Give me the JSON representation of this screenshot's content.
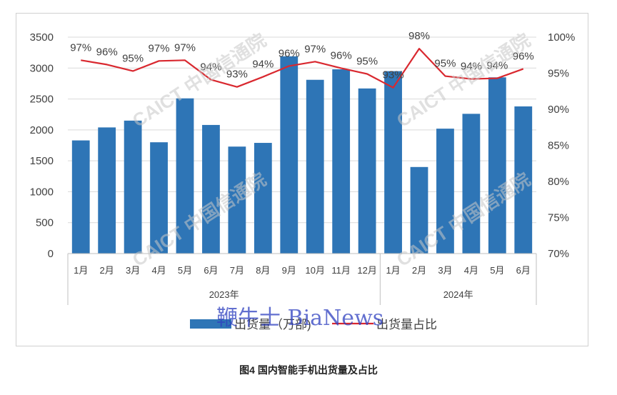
{
  "chart_data": {
    "type": "bar+line",
    "categories": [
      "1月",
      "2月",
      "3月",
      "4月",
      "5月",
      "6月",
      "7月",
      "8月",
      "9月",
      "10月",
      "11月",
      "12月",
      "1月",
      "2月",
      "3月",
      "4月",
      "5月",
      "6月"
    ],
    "year_groups": [
      {
        "label": "2023年",
        "count": 12
      },
      {
        "label": "2024年",
        "count": 6
      }
    ],
    "series": [
      {
        "name": "出货量（万部)",
        "type": "bar",
        "axis": "left",
        "color": "#2e75b6",
        "values": [
          1830,
          2040,
          2150,
          1800,
          2510,
          2080,
          1730,
          1790,
          3190,
          2810,
          2980,
          2670,
          2950,
          1400,
          2020,
          2260,
          2850,
          2380
        ]
      },
      {
        "name": "出货量占比",
        "type": "line",
        "axis": "right",
        "color": "#d9282f",
        "values": [
          96.8,
          96.2,
          95.3,
          96.7,
          96.8,
          94.1,
          93.1,
          94.5,
          96.0,
          96.6,
          95.7,
          94.9,
          93.0,
          98.4,
          94.6,
          94.2,
          94.3,
          95.6
        ],
        "labels": [
          "97%",
          "96%",
          "95%",
          "97%",
          "97%",
          "94%",
          "93%",
          "94%",
          "96%",
          "97%",
          "96%",
          "95%",
          "93%",
          "98%",
          "95%",
          "94%",
          "94%",
          "96%"
        ]
      }
    ],
    "y_left": {
      "min": 0,
      "max": 3500,
      "ticks": [
        "0",
        "500",
        "1000",
        "1500",
        "2000",
        "2500",
        "3000",
        "3500"
      ]
    },
    "y_right": {
      "min": 70,
      "max": 100,
      "ticks": [
        "70%",
        "75%",
        "80%",
        "85%",
        "90%",
        "95%",
        "100%"
      ]
    },
    "grid": true,
    "legend_position": "bottom"
  },
  "watermark": "CAICT 中国信通院",
  "overlay_text": "鞭牛士 BiaNews",
  "caption": "图4   国内智能手机出货量及占比"
}
